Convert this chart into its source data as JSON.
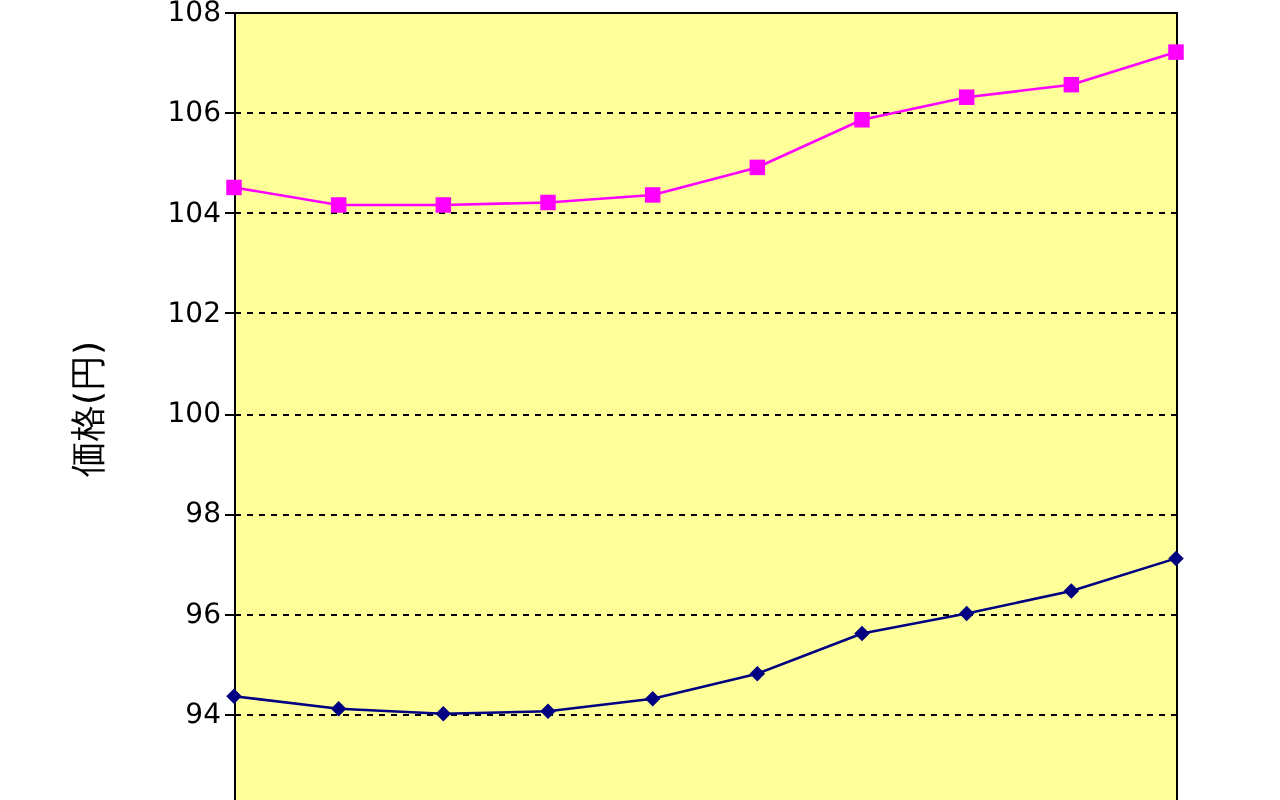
{
  "chart_data": {
    "type": "line",
    "ylabel": "価格(円)",
    "categories": [
      null,
      null,
      null,
      null,
      null,
      null,
      null,
      null,
      null,
      null
    ],
    "series": [
      {
        "color": "#ff00ff",
        "marker": "square",
        "values": [
          104.5,
          104.15,
          104.15,
          104.2,
          104.35,
          104.9,
          105.85,
          106.3,
          106.55,
          107.2
        ]
      },
      {
        "color": "#000080",
        "marker": "diamond",
        "values": [
          94.35,
          94.1,
          94.0,
          94.05,
          94.3,
          94.8,
          95.6,
          96.0,
          96.45,
          97.1
        ]
      }
    ],
    "ylim": [
      92.2,
      108
    ],
    "yticks": [
      94,
      96,
      98,
      100,
      102,
      104,
      106,
      108
    ],
    "grid": "y",
    "tick_labels": "y",
    "line_style": "solid"
  }
}
